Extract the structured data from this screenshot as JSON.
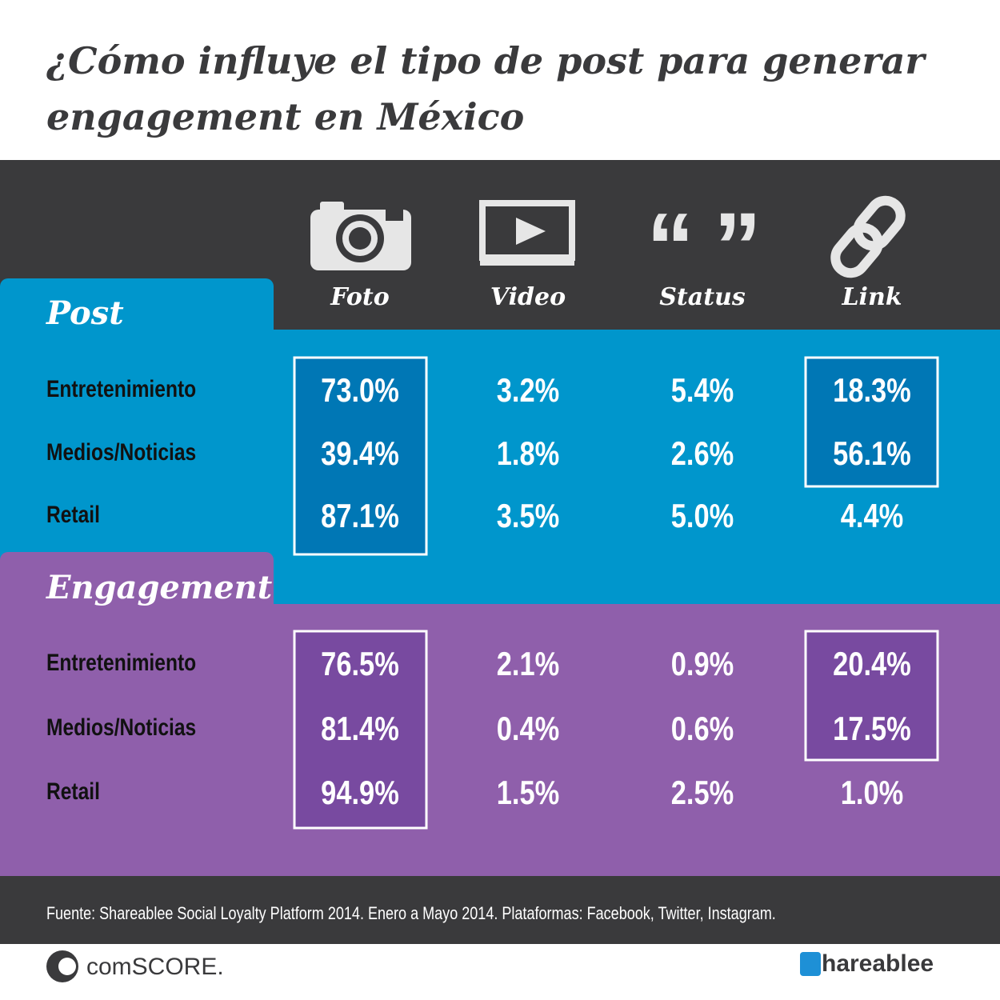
{
  "header": {
    "title_lines": [
      "¿Cómo influye el tipo de post para generar",
      "engagement en México"
    ]
  },
  "columns": [
    "Foto",
    "Video",
    "Status",
    "Link"
  ],
  "sections": [
    {
      "label": "Post",
      "rows": [
        {
          "label": "Entretenimiento",
          "values": [
            "73.0%",
            "3.2%",
            "5.4%",
            "18.3%"
          ]
        },
        {
          "label": "Medios/Noticias",
          "values": [
            "39.4%",
            "1.8%",
            "2.6%",
            "56.1%"
          ]
        },
        {
          "label": "Retail",
          "values": [
            "87.1%",
            "3.5%",
            "5.0%",
            "4.4%"
          ]
        }
      ]
    },
    {
      "label": "Engagement",
      "rows": [
        {
          "label": "Entretenimiento",
          "values": [
            "76.5%",
            "2.1%",
            "0.9%",
            "20.4%"
          ]
        },
        {
          "label": "Medios/Noticias",
          "values": [
            "81.4%",
            "0.4%",
            "0.6%",
            "17.5%"
          ]
        },
        {
          "label": "Retail",
          "values": [
            "94.9%",
            "1.5%",
            "2.5%",
            "1.0%"
          ]
        }
      ]
    }
  ],
  "footer": {
    "source": "Fuente: Shareablee Social Loyalty Platform 2014. Enero a Mayo 2014.  Plataformas: Facebook, Twitter, Instagram.",
    "logos": [
      "comSCORE.",
      "hareablee"
    ]
  }
}
